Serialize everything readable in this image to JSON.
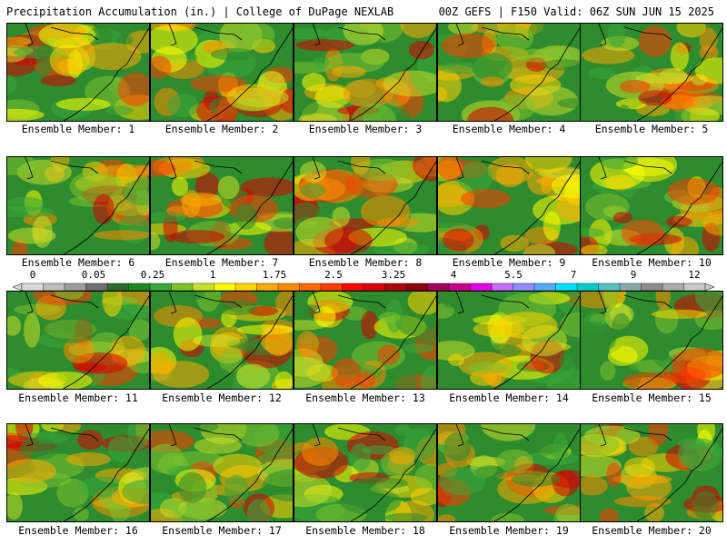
{
  "header": {
    "title": "Precipitation Accumulation (in.) | College of DuPage NEXLAB",
    "run_info": "00Z GEFS | F150 Valid: 06Z SUN JUN 15 2025"
  },
  "panels": [
    {
      "label": "Ensemble Member: 1"
    },
    {
      "label": "Ensemble Member: 2"
    },
    {
      "label": "Ensemble Member: 3"
    },
    {
      "label": "Ensemble Member: 4"
    },
    {
      "label": "Ensemble Member: 5"
    },
    {
      "label": "Ensemble Member: 6"
    },
    {
      "label": "Ensemble Member: 7"
    },
    {
      "label": "Ensemble Member: 8"
    },
    {
      "label": "Ensemble Member: 9"
    },
    {
      "label": "Ensemble Member: 10"
    },
    {
      "label": "Ensemble Member: 11"
    },
    {
      "label": "Ensemble Member: 12"
    },
    {
      "label": "Ensemble Member: 13"
    },
    {
      "label": "Ensemble Member: 14"
    },
    {
      "label": "Ensemble Member: 15"
    },
    {
      "label": "Ensemble Member: 16"
    },
    {
      "label": "Ensemble Member: 17"
    },
    {
      "label": "Ensemble Member: 18"
    },
    {
      "label": "Ensemble Member: 19"
    },
    {
      "label": "Ensemble Member: 20"
    }
  ],
  "colorbar": {
    "tick_labels": [
      "0",
      "0.05",
      "0.25",
      "1",
      "1.75",
      "2.5",
      "3.25",
      "4",
      "5.5",
      "7",
      "9",
      "12"
    ],
    "colors": [
      "#d9d9d9",
      "#bdbdbd",
      "#9e9e9e",
      "#6f6f6f",
      "#2f6b2f",
      "#1f8a1f",
      "#3aa83a",
      "#7cc22d",
      "#c9e02a",
      "#ffff00",
      "#ffd400",
      "#ffaa00",
      "#ff8c00",
      "#ff6a00",
      "#ff3c00",
      "#ff0000",
      "#d80000",
      "#b00000",
      "#8b0000",
      "#a0005a",
      "#c8008c",
      "#e600e6",
      "#c86bff",
      "#8f8fff",
      "#55aaff",
      "#00e0ff",
      "#00cccc",
      "#55c0c0",
      "#8aa8a8",
      "#8c8c8c",
      "#aaaaaa",
      "#c8c8c8"
    ]
  },
  "palette": {
    "background": "#2e8b2e",
    "coastline": "#000000"
  }
}
